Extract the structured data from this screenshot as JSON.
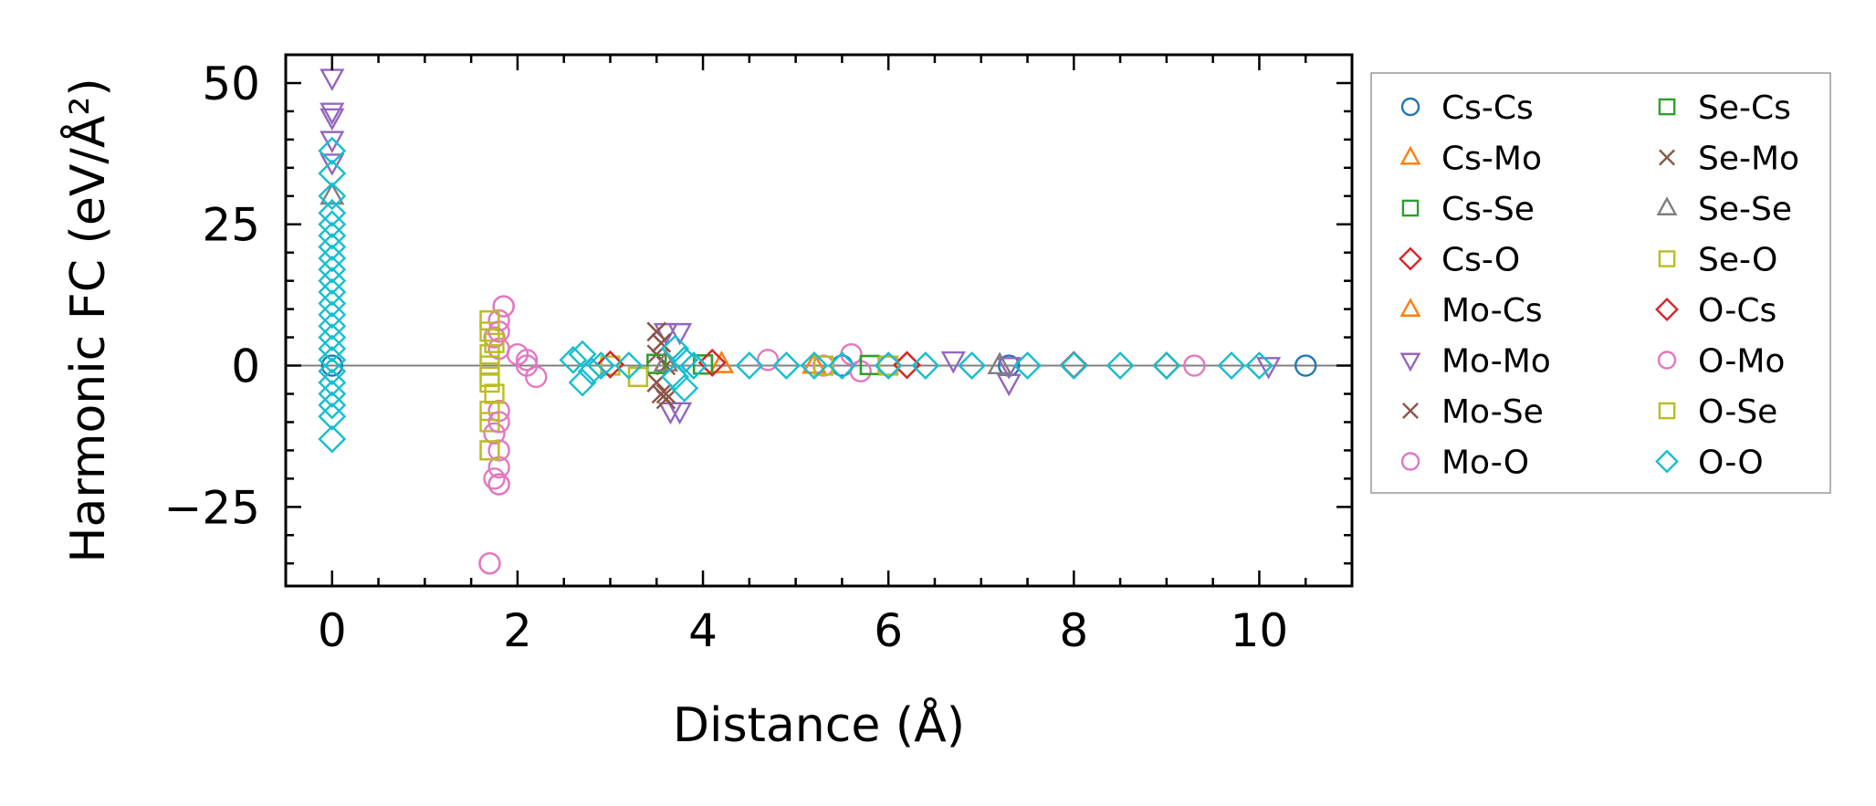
{
  "chart_data": {
    "type": "scatter",
    "xlabel": "Distance (Å)",
    "ylabel": "Harmonic FC (eV/Å²)",
    "xlim": [
      -0.5,
      11
    ],
    "ylim": [
      -39,
      55
    ],
    "xticks": [
      0,
      2,
      4,
      6,
      8,
      10
    ],
    "xtick_labels": [
      "0",
      "2",
      "4",
      "6",
      "8",
      "10"
    ],
    "yticks": [
      -25,
      0,
      25,
      50
    ],
    "ytick_labels": [
      "−25",
      "0",
      "25",
      "50"
    ],
    "zero_line": 0,
    "legend_position": "outside-right",
    "legend_columns": 2,
    "series": [
      {
        "name": "Cs-Cs",
        "marker": "circle",
        "color": "#1f77b4",
        "points": [
          [
            0,
            0
          ],
          [
            10.5,
            0
          ],
          [
            7.3,
            0
          ],
          [
            5.5,
            0
          ]
        ]
      },
      {
        "name": "Cs-Mo",
        "marker": "triangle-up",
        "color": "#ff7f0e",
        "points": [
          [
            3.6,
            0.5
          ],
          [
            4.2,
            0.2
          ],
          [
            5.2,
            0.1
          ]
        ]
      },
      {
        "name": "Cs-Se",
        "marker": "square",
        "color": "#2ca02c",
        "points": [
          [
            3.5,
            0.3
          ],
          [
            4.0,
            0.2
          ],
          [
            5.8,
            0.1
          ]
        ]
      },
      {
        "name": "Cs-O",
        "marker": "diamond",
        "color": "#d62728",
        "points": [
          [
            3.0,
            0.2
          ],
          [
            4.1,
            0.5
          ],
          [
            6.2,
            0.1
          ],
          [
            8.0,
            0.1
          ]
        ]
      },
      {
        "name": "Mo-Cs",
        "marker": "triangle-up",
        "color": "#ff7f0e",
        "points": [
          [
            3.6,
            0.5
          ],
          [
            4.2,
            0.2
          ],
          [
            5.2,
            0.1
          ]
        ]
      },
      {
        "name": "Mo-Mo",
        "marker": "triangle-down",
        "color": "#9467bd",
        "points": [
          [
            0,
            51
          ],
          [
            0,
            45
          ],
          [
            0,
            44
          ],
          [
            0,
            40
          ],
          [
            0,
            36
          ],
          [
            3.6,
            6
          ],
          [
            3.75,
            6
          ],
          [
            3.65,
            -8
          ],
          [
            3.75,
            -8
          ],
          [
            6.7,
            1
          ],
          [
            7.3,
            0
          ],
          [
            7.3,
            -3
          ],
          [
            10.1,
            0
          ]
        ]
      },
      {
        "name": "Mo-Se",
        "marker": "x",
        "color": "#8c564b",
        "points": [
          [
            3.5,
            6
          ],
          [
            3.55,
            4
          ],
          [
            3.5,
            2
          ],
          [
            3.5,
            -3
          ],
          [
            3.55,
            -5
          ],
          [
            3.6,
            -6
          ],
          [
            3.6,
            0
          ]
        ]
      },
      {
        "name": "Mo-O",
        "marker": "circle",
        "color": "#e377c2",
        "points": [
          [
            1.85,
            10.5
          ],
          [
            1.8,
            8
          ],
          [
            1.75,
            5
          ],
          [
            1.8,
            3
          ],
          [
            1.8,
            -8
          ],
          [
            1.75,
            -12
          ],
          [
            1.8,
            -15
          ],
          [
            1.8,
            -18
          ],
          [
            1.8,
            -21
          ],
          [
            1.75,
            -20
          ],
          [
            1.7,
            -35
          ],
          [
            2.0,
            2
          ],
          [
            2.1,
            0
          ],
          [
            2.2,
            -2
          ],
          [
            4.7,
            1
          ],
          [
            5.3,
            0
          ],
          [
            5.6,
            2
          ],
          [
            5.7,
            -1
          ],
          [
            6.0,
            0
          ],
          [
            9.3,
            0
          ]
        ]
      },
      {
        "name": "Se-Cs",
        "marker": "square",
        "color": "#2ca02c",
        "points": [
          [
            3.5,
            0.3
          ],
          [
            4.0,
            0.2
          ],
          [
            5.8,
            0.1
          ]
        ]
      },
      {
        "name": "Se-Mo",
        "marker": "x",
        "color": "#8c564b",
        "points": [
          [
            3.5,
            6
          ],
          [
            3.55,
            4
          ],
          [
            3.5,
            -3
          ],
          [
            3.6,
            -5
          ]
        ]
      },
      {
        "name": "Se-Se",
        "marker": "triangle-up",
        "color": "#7f7f7f",
        "points": [
          [
            0,
            30
          ],
          [
            3.6,
            0.5
          ],
          [
            7.2,
            0
          ]
        ]
      },
      {
        "name": "Se-O",
        "marker": "square",
        "color": "#bcbd22",
        "points": [
          [
            1.7,
            8
          ],
          [
            1.7,
            6
          ],
          [
            1.75,
            4
          ],
          [
            1.7,
            2
          ],
          [
            1.7,
            0
          ],
          [
            1.7,
            -2
          ],
          [
            1.75,
            -5
          ],
          [
            1.7,
            -8
          ],
          [
            1.7,
            -10
          ],
          [
            1.7,
            -15
          ],
          [
            3.0,
            0
          ],
          [
            3.3,
            -2
          ],
          [
            5.3,
            0
          ],
          [
            6.0,
            0
          ]
        ]
      },
      {
        "name": "O-Cs",
        "marker": "diamond",
        "color": "#d62728",
        "points": [
          [
            3.0,
            0.2
          ],
          [
            4.1,
            0.5
          ],
          [
            6.2,
            0.1
          ],
          [
            8.0,
            0.1
          ],
          [
            9.0,
            0
          ]
        ]
      },
      {
        "name": "O-Mo",
        "marker": "circle",
        "color": "#e377c2",
        "points": [
          [
            1.85,
            10.5
          ],
          [
            1.8,
            6
          ],
          [
            1.8,
            -10
          ],
          [
            1.8,
            -21
          ],
          [
            1.7,
            -35
          ],
          [
            2.1,
            1
          ]
        ]
      },
      {
        "name": "O-Se",
        "marker": "square",
        "color": "#bcbd22",
        "points": [
          [
            1.7,
            8
          ],
          [
            1.7,
            -3
          ],
          [
            1.7,
            -15
          ],
          [
            3.3,
            -2
          ]
        ]
      },
      {
        "name": "O-O",
        "marker": "diamond",
        "color": "#17becf",
        "points": [
          [
            0,
            38
          ],
          [
            0,
            34
          ],
          [
            0,
            30
          ],
          [
            0,
            27
          ],
          [
            0,
            25
          ],
          [
            0,
            23
          ],
          [
            0,
            21
          ],
          [
            0,
            19
          ],
          [
            0,
            17
          ],
          [
            0,
            15
          ],
          [
            0,
            13
          ],
          [
            0,
            11
          ],
          [
            0,
            9
          ],
          [
            0,
            7
          ],
          [
            0,
            5
          ],
          [
            0,
            3
          ],
          [
            0,
            1
          ],
          [
            0,
            -1
          ],
          [
            0,
            -3
          ],
          [
            0,
            -5
          ],
          [
            0,
            -7
          ],
          [
            0,
            -9
          ],
          [
            0,
            -13
          ],
          [
            2.6,
            1
          ],
          [
            2.7,
            2
          ],
          [
            2.8,
            -1
          ],
          [
            2.7,
            -3
          ],
          [
            2.9,
            0
          ],
          [
            3.2,
            0
          ],
          [
            3.7,
            3
          ],
          [
            3.8,
            1
          ],
          [
            3.7,
            -2
          ],
          [
            3.8,
            -4
          ],
          [
            3.9,
            0
          ],
          [
            4.5,
            0
          ],
          [
            4.9,
            0
          ],
          [
            5.2,
            0
          ],
          [
            5.5,
            0
          ],
          [
            6.0,
            0
          ],
          [
            6.4,
            0
          ],
          [
            6.9,
            0
          ],
          [
            7.5,
            0
          ],
          [
            8.0,
            0
          ],
          [
            8.5,
            0
          ],
          [
            9.0,
            0
          ],
          [
            9.7,
            0
          ],
          [
            10.0,
            0
          ]
        ]
      }
    ]
  }
}
